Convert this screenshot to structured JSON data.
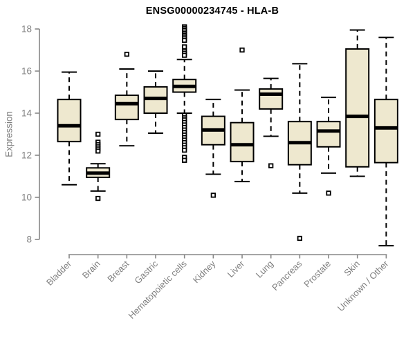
{
  "chart_data": {
    "type": "boxplot",
    "title": "ENSG00000234745 - HLA-B",
    "ylabel": "Expression",
    "xlabel": "",
    "ylim": [
      7.5,
      18.3
    ],
    "yticks": [
      8,
      10,
      12,
      14,
      16,
      18
    ],
    "grid": false,
    "legend": "none",
    "categories": [
      "Bladder",
      "Brain",
      "Breast",
      "Gastric",
      "Hematopoietic cells",
      "Kidney",
      "Liver",
      "Lung",
      "Pancreas",
      "Prostate",
      "Skin",
      "Unknown / Other"
    ],
    "boxes": [
      {
        "category": "Bladder",
        "whisker_low": 10.6,
        "q1": 12.65,
        "median": 13.4,
        "q3": 14.65,
        "whisker_high": 15.95,
        "outliers": []
      },
      {
        "category": "Brain",
        "whisker_low": 10.3,
        "q1": 10.95,
        "median": 11.15,
        "q3": 11.4,
        "whisker_high": 11.6,
        "outliers": [
          13.0,
          12.62,
          12.5,
          12.4,
          12.3,
          12.2,
          9.95
        ]
      },
      {
        "category": "Breast",
        "whisker_low": 12.45,
        "q1": 13.7,
        "median": 14.45,
        "q3": 14.85,
        "whisker_high": 16.1,
        "outliers": [
          16.8
        ]
      },
      {
        "category": "Gastric",
        "whisker_low": 13.05,
        "q1": 14.0,
        "median": 14.7,
        "q3": 15.25,
        "whisker_high": 16.0,
        "outliers": []
      },
      {
        "category": "Hematopoietic cells",
        "whisker_low": 14.0,
        "q1": 15.0,
        "median": 15.27,
        "q3": 15.6,
        "whisker_high": 16.55,
        "outliers": [
          18.1,
          18.02,
          17.94,
          17.86,
          17.78,
          17.7,
          17.62,
          17.54,
          17.46,
          17.15,
          16.95,
          16.85,
          16.75,
          13.9,
          13.78,
          13.68,
          13.56,
          13.44,
          13.32,
          13.2,
          13.08,
          12.96,
          12.84,
          12.72,
          12.6,
          12.48,
          12.36,
          12.24,
          11.9,
          11.76
        ]
      },
      {
        "category": "Kidney",
        "whisker_low": 11.1,
        "q1": 12.5,
        "median": 13.2,
        "q3": 13.85,
        "whisker_high": 14.65,
        "outliers": [
          10.1
        ]
      },
      {
        "category": "Liver",
        "whisker_low": 10.75,
        "q1": 11.7,
        "median": 12.5,
        "q3": 13.55,
        "whisker_high": 15.1,
        "outliers": [
          17.0
        ]
      },
      {
        "category": "Lung",
        "whisker_low": 12.9,
        "q1": 14.2,
        "median": 14.9,
        "q3": 15.15,
        "whisker_high": 15.65,
        "outliers": [
          11.5
        ]
      },
      {
        "category": "Pancreas",
        "whisker_low": 10.2,
        "q1": 11.55,
        "median": 12.6,
        "q3": 13.6,
        "whisker_high": 16.35,
        "outliers": [
          8.05
        ]
      },
      {
        "category": "Prostate",
        "whisker_low": 11.15,
        "q1": 12.4,
        "median": 13.15,
        "q3": 13.6,
        "whisker_high": 14.75,
        "outliers": [
          10.2
        ]
      },
      {
        "category": "Skin",
        "whisker_low": 11.0,
        "q1": 11.45,
        "median": 13.85,
        "q3": 17.05,
        "whisker_high": 17.95,
        "outliers": []
      },
      {
        "category": "Unknown / Other",
        "whisker_low": 7.7,
        "q1": 11.65,
        "median": 13.3,
        "q3": 14.65,
        "whisker_high": 17.6,
        "outliers": []
      }
    ],
    "colors": {
      "box_fill": "#EEE8CF",
      "box_stroke": "#000000",
      "median": "#000000",
      "whisker": "#000000",
      "axis": "#878787",
      "tick_text": "#7f7f7f",
      "title_text": "#000000"
    }
  }
}
